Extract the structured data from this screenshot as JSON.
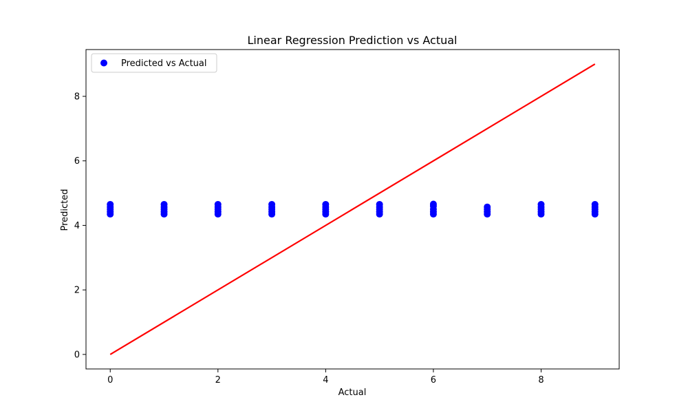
{
  "chart_data": {
    "type": "scatter",
    "title": "Linear Regression Prediction vs Actual",
    "xlabel": "Actual",
    "ylabel": "Predicted",
    "xlim": [
      -0.45,
      9.45
    ],
    "ylim": [
      -0.45,
      9.45
    ],
    "xticks": [
      0,
      2,
      4,
      6,
      8
    ],
    "yticks": [
      0,
      2,
      4,
      6,
      8
    ],
    "grid": false,
    "legend": {
      "placement": "top-left",
      "entries": [
        "Predicted vs Actual"
      ]
    },
    "series": [
      {
        "name": "Predicted vs Actual",
        "kind": "scatter",
        "color": "#0000ff",
        "points": [
          [
            0,
            4.35
          ],
          [
            0,
            4.42
          ],
          [
            0,
            4.5
          ],
          [
            0,
            4.57
          ],
          [
            0,
            4.65
          ],
          [
            1,
            4.35
          ],
          [
            1,
            4.42
          ],
          [
            1,
            4.5
          ],
          [
            1,
            4.57
          ],
          [
            1,
            4.65
          ],
          [
            2,
            4.35
          ],
          [
            2,
            4.42
          ],
          [
            2,
            4.5
          ],
          [
            2,
            4.57
          ],
          [
            2,
            4.65
          ],
          [
            3,
            4.35
          ],
          [
            3,
            4.42
          ],
          [
            3,
            4.5
          ],
          [
            3,
            4.57
          ],
          [
            3,
            4.65
          ],
          [
            4,
            4.35
          ],
          [
            4,
            4.42
          ],
          [
            4,
            4.5
          ],
          [
            4,
            4.57
          ],
          [
            4,
            4.65
          ],
          [
            5,
            4.35
          ],
          [
            5,
            4.42
          ],
          [
            5,
            4.5
          ],
          [
            5,
            4.57
          ],
          [
            5,
            4.65
          ],
          [
            6,
            4.35
          ],
          [
            6,
            4.42
          ],
          [
            6,
            4.5
          ],
          [
            6,
            4.6
          ],
          [
            6,
            4.66
          ],
          [
            7,
            4.35
          ],
          [
            7,
            4.42
          ],
          [
            7,
            4.5
          ],
          [
            7,
            4.57
          ],
          [
            8,
            4.35
          ],
          [
            8,
            4.42
          ],
          [
            8,
            4.5
          ],
          [
            8,
            4.57
          ],
          [
            8,
            4.65
          ],
          [
            9,
            4.35
          ],
          [
            9,
            4.42
          ],
          [
            9,
            4.5
          ],
          [
            9,
            4.57
          ],
          [
            9,
            4.65
          ]
        ]
      },
      {
        "kind": "line",
        "color": "#ff0000",
        "x": [
          0,
          9
        ],
        "y": [
          0,
          9
        ]
      }
    ]
  }
}
